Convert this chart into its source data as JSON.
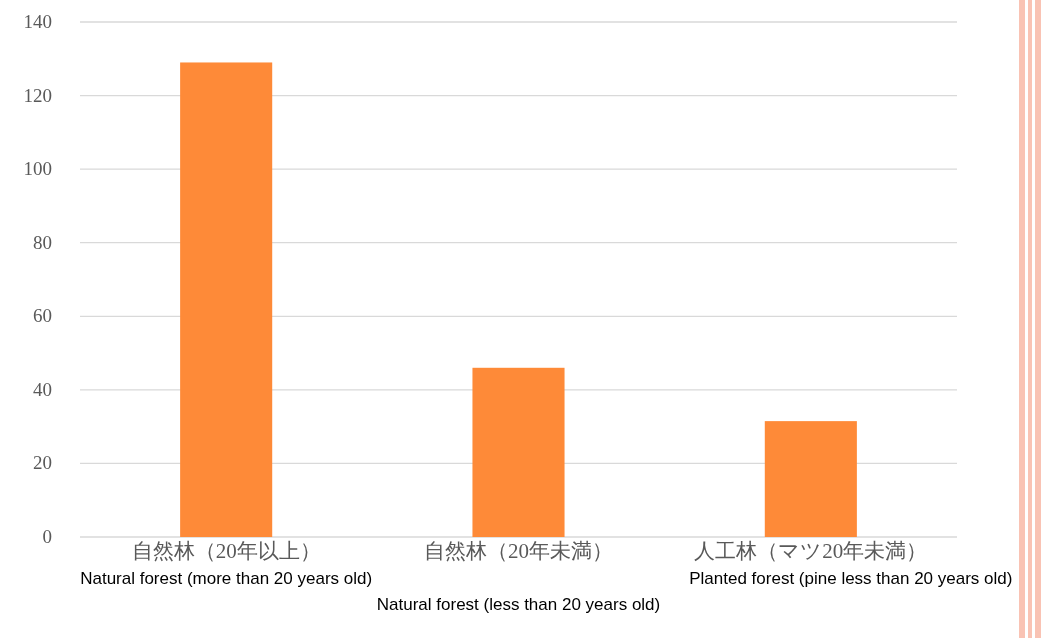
{
  "chart_data": {
    "type": "bar",
    "categories": [
      "自然林（20年以上）",
      "自然林（20年未満）",
      "人工林（マツ20年未満）"
    ],
    "values": [
      129,
      46,
      31.5
    ],
    "color": "#fe8a38",
    "ylim": [
      0,
      140
    ],
    "yticks": [
      0,
      20,
      40,
      60,
      80,
      100,
      120,
      140
    ],
    "grid": "y",
    "annotations": [
      "Natural forest (more than 20 years old)",
      "Natural forest (less than 20 years old)",
      "Planted forest (pine less than 20 years old)"
    ]
  }
}
